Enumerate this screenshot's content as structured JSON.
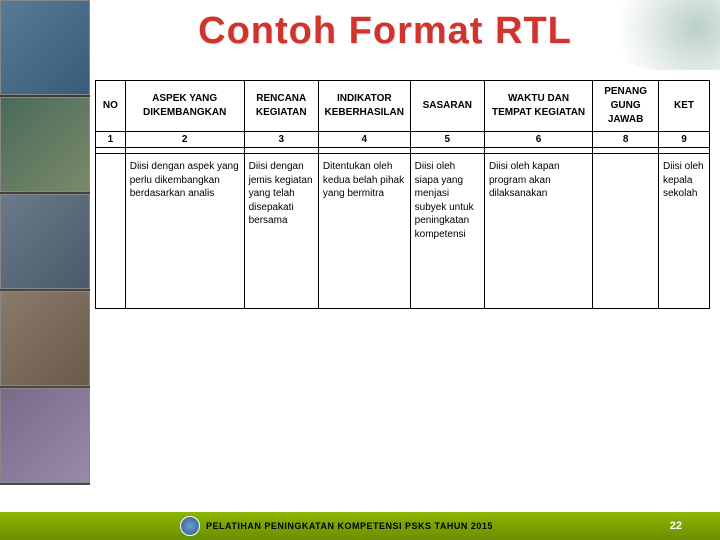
{
  "title": "Contoh Format RTL",
  "table": {
    "headers": [
      "NO",
      "ASPEK YANG DIKEMBANGKAN",
      "RENCANA KEGIATAN",
      "INDIKATOR KEBERHASILAN",
      "SASARAN",
      "WAKTU DAN TEMPAT KEGIATAN",
      "PENANG GUNG JAWAB",
      "KET"
    ],
    "numbers": [
      "1",
      "2",
      "3",
      "4",
      "5",
      "6",
      "8",
      "9"
    ],
    "descriptions": [
      "",
      "Diisi dengan aspek yang perlu dikembangkan berdasarkan analis",
      "Diisi dengan jemis kegiatan yang telah disepakati bersama",
      "Ditentukan oleh kedua belah pihak yang bermitra",
      "Diisi oleh siapa yang menjasi subyek untuk peningkatan kompetensi",
      "Diisi oleh kapan program akan dilaksanakan",
      "",
      "Diisi oleh kepala sekolah"
    ]
  },
  "footer": {
    "text": "PELATIHAN PENINGKATAN KOMPETENSI PSKS TAHUN 2015",
    "page": "22"
  },
  "colors": {
    "title": "#d0342c",
    "footer_bg_top": "#8db600",
    "footer_bg_bottom": "#6b8e00",
    "border": "#000000"
  }
}
